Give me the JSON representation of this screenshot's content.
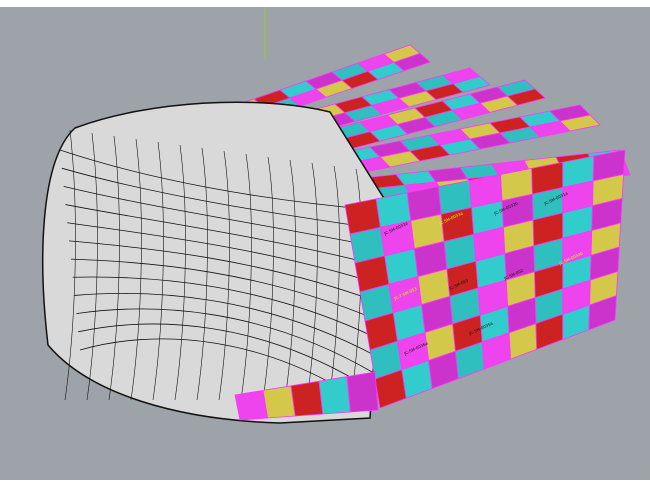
{
  "viewport": {
    "background": "#9ea3a9",
    "top_band": "#ffffff",
    "axis_color": "#9acd32"
  },
  "model": {
    "shell_color": "#d9d9d9",
    "edge_color": "#111111",
    "panel_palette": [
      "#cc33cc",
      "#33cccc",
      "#cc2222",
      "#d4c84a",
      "#ee44ee",
      "#2fbfbf"
    ],
    "panel_labels": [
      "JC-SM-0032a",
      "JC-SM-0033a",
      "JC-SM-0032b",
      "JC-SM-0031a",
      "JC-7.SM-003",
      "JC-SM-003",
      "JC-SM-002",
      "JC-SM-0034b",
      "JC-SM-0036a",
      "JC-SM-0035a"
    ]
  }
}
